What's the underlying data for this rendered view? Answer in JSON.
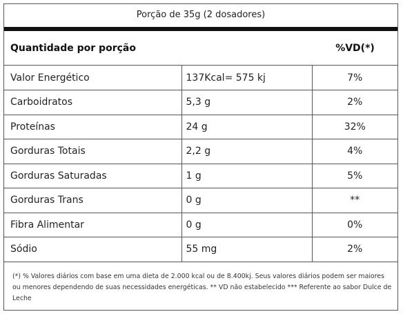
{
  "header": {
    "serving": "Porção de 35g (2 dosadores)",
    "quantity_label": "Quantidade por porção",
    "vd_label": "%VD(*)"
  },
  "rows": [
    {
      "nutrient": "Valor Energético",
      "amount": "137Kcal= 575 kj",
      "vd": "7%"
    },
    {
      "nutrient": "Carboidratos",
      "amount": "5,3 g",
      "vd": "2%"
    },
    {
      "nutrient": "Proteínas",
      "amount": "24 g",
      "vd": "32%"
    },
    {
      "nutrient": "Gorduras Totais",
      "amount": "2,2 g",
      "vd": "4%"
    },
    {
      "nutrient": "Gorduras Saturadas",
      "amount": "1 g",
      "vd": "5%"
    },
    {
      "nutrient": "Gorduras Trans",
      "amount": "0 g",
      "vd": "**"
    },
    {
      "nutrient": "Fibra Alimentar",
      "amount": "0 g",
      "vd": "0%"
    },
    {
      "nutrient": "Sódio",
      "amount": "55 mg",
      "vd": "2%"
    }
  ],
  "footnote": "(*) % Valores diários com base em uma dieta de 2.000 kcal ou de 8.400kj. Seus valores diários podem ser maiores ou menores dependendo de suas necessidades energéticas. ** VD não estabelecido *** Referente ao sabor Dulce de Leche"
}
